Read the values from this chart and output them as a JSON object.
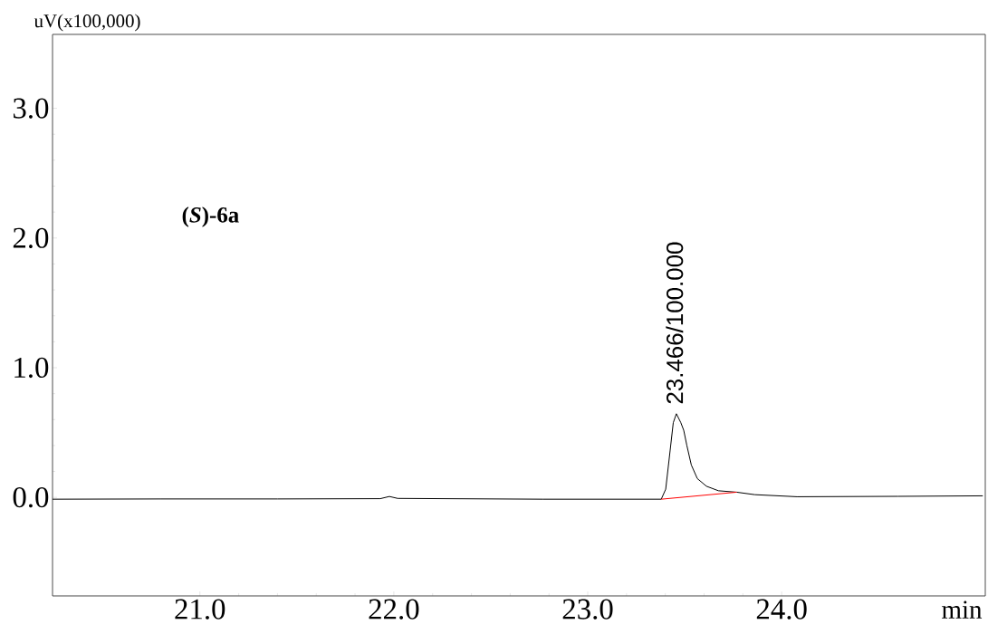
{
  "chart_data": {
    "type": "line",
    "ylabel": "uV(x100,000)",
    "xlabel": "min",
    "xlim": [
      20.24,
      25.05
    ],
    "ylim": [
      -0.76,
      3.57
    ],
    "xticks": [
      {
        "value": 21,
        "label": "21.0"
      },
      {
        "value": 22,
        "label": "22.0"
      },
      {
        "value": 23,
        "label": "23.0"
      },
      {
        "value": 24,
        "label": "24.0"
      }
    ],
    "yticks": [
      {
        "value": 0,
        "label": "0.0"
      },
      {
        "value": 1,
        "label": "1.0"
      },
      {
        "value": 2,
        "label": "2.0"
      },
      {
        "value": 3,
        "label": "3.0"
      }
    ],
    "series": [
      {
        "color": "#000000",
        "x": [
          20.24,
          20.8,
          21.4,
          21.93,
          21.977,
          22.02,
          22.77,
          23.379,
          23.402,
          23.425,
          23.441,
          23.457,
          23.48,
          23.495,
          23.511,
          23.534,
          23.565,
          23.612,
          23.674,
          23.768,
          23.861,
          24.079,
          24.6,
          25.037
        ],
        "values": [
          -0.014,
          -0.012,
          -0.012,
          -0.01,
          0.007,
          -0.008,
          -0.014,
          -0.014,
          0.063,
          0.364,
          0.576,
          0.645,
          0.576,
          0.517,
          0.401,
          0.25,
          0.145,
          0.086,
          0.051,
          0.04,
          0.021,
          0.005,
          0.008,
          0.012
        ]
      },
      {
        "color": "#ff0000",
        "x": [
          23.379,
          23.768
        ],
        "values": [
          -0.014,
          0.04
        ]
      }
    ],
    "annotations": [
      "(*S*)-6a",
      {
        "text": "23.466/100.000",
        "x": 23.466,
        "y": 0.645
      }
    ]
  }
}
